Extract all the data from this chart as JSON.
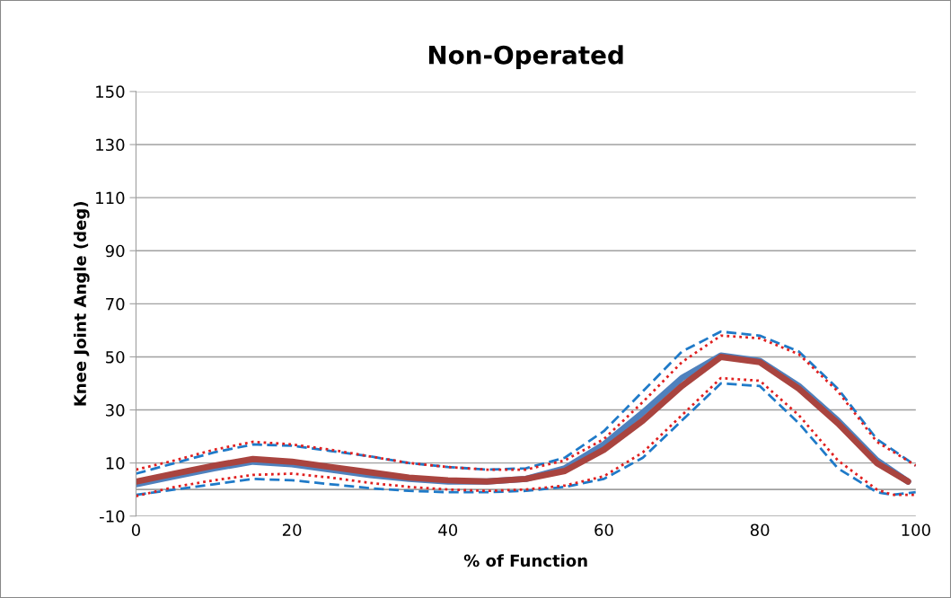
{
  "chart_data": {
    "type": "line",
    "title": "Non-Operated",
    "xlabel": "% of Function",
    "ylabel": "Knee Joint Angle (deg)",
    "x": [
      0,
      5,
      10,
      15,
      20,
      25,
      30,
      35,
      40,
      45,
      50,
      55,
      60,
      65,
      70,
      75,
      80,
      85,
      90,
      95,
      99
    ],
    "xlim": [
      0,
      100
    ],
    "xticks": [
      0,
      20,
      40,
      60,
      80,
      100
    ],
    "ylim": [
      -10,
      150
    ],
    "yticks": [
      -10,
      10,
      30,
      50,
      70,
      90,
      110,
      130,
      150
    ],
    "grid": "y",
    "legend": false,
    "marker": "none",
    "series": [
      {
        "color": "#4f81bd",
        "line_style": "solid",
        "values": [
          2,
          5,
          8,
          10.5,
          9.5,
          7.5,
          5.5,
          4,
          3,
          3,
          4,
          8,
          17,
          29,
          42,
          50.5,
          48.5,
          39,
          26,
          11,
          3
        ]
      },
      {
        "color": "#a9443f",
        "line_style": "solid",
        "values": [
          3,
          6,
          9,
          11.5,
          10.5,
          8.5,
          6.5,
          4.5,
          3.5,
          3,
          4,
          7,
          15,
          26,
          39,
          50,
          48,
          38,
          25,
          10,
          3
        ]
      },
      {
        "color": "#1f7ac8",
        "line_style": "dashed",
        "x": [
          0,
          5,
          10,
          15,
          20,
          25,
          30,
          35,
          40,
          45,
          50,
          55,
          60,
          65,
          70,
          75,
          80,
          85,
          90,
          95,
          100
        ],
        "values": [
          6,
          10,
          14,
          17,
          16.5,
          14.5,
          12.5,
          10,
          8.5,
          7.5,
          8,
          12,
          22,
          37,
          52,
          59.5,
          58,
          52,
          38,
          19,
          9
        ]
      },
      {
        "color": "#e02020",
        "line_style": "dotted",
        "x": [
          0,
          5,
          10,
          15,
          20,
          25,
          30,
          35,
          40,
          45,
          50,
          55,
          60,
          65,
          70,
          75,
          80,
          85,
          90,
          95,
          100
        ],
        "values": [
          7.5,
          11,
          15,
          18,
          17,
          15,
          12.5,
          10,
          8.5,
          7.5,
          7.5,
          11,
          19,
          33,
          48,
          58,
          57,
          51,
          37,
          18,
          9
        ]
      },
      {
        "color": "#1f7ac8",
        "line_style": "dashed",
        "x": [
          0,
          5,
          10,
          15,
          20,
          25,
          30,
          35,
          40,
          45,
          50,
          55,
          60,
          65,
          70,
          75,
          80,
          85,
          90,
          95,
          97,
          100
        ],
        "values": [
          -2,
          0,
          2,
          4,
          3.5,
          2,
          0.5,
          -0.5,
          -1,
          -1,
          -0.5,
          1,
          4,
          12,
          26,
          40,
          39,
          25,
          8,
          -1,
          -2,
          -1
        ]
      },
      {
        "color": "#e02020",
        "line_style": "dotted",
        "x": [
          0,
          5,
          10,
          15,
          20,
          25,
          30,
          35,
          40,
          45,
          50,
          55,
          60,
          65,
          70,
          75,
          80,
          85,
          90,
          95,
          97,
          100
        ],
        "values": [
          -2.5,
          1,
          3.5,
          5.5,
          6,
          4.5,
          2.5,
          1,
          0,
          -0.5,
          0,
          1.5,
          5,
          14,
          28,
          42,
          41,
          28,
          11,
          0,
          -2,
          -2
        ]
      }
    ]
  }
}
